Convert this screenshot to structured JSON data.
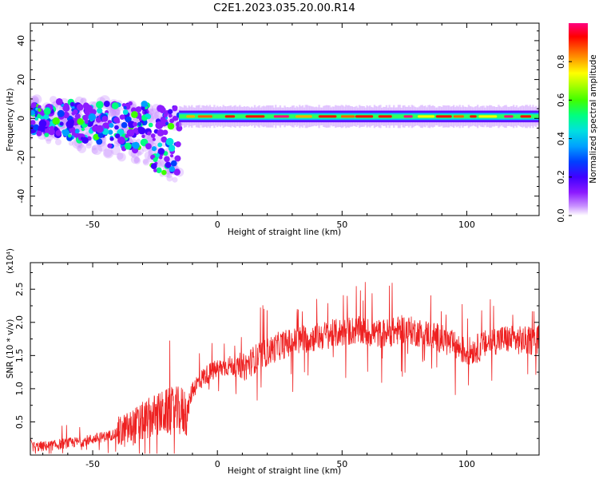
{
  "chart_data": [
    {
      "type": "heatmap",
      "title": "C2E1.2023.035.20.00.R14",
      "xlabel": "Height of straight line (km)",
      "ylabel": "Frequency (Hz)",
      "xlim": [
        -75,
        129
      ],
      "ylim": [
        -50,
        49
      ],
      "x_ticks": [
        -50,
        0,
        50,
        100
      ],
      "y_ticks": [
        -40,
        -20,
        0,
        20,
        40
      ],
      "grid": false,
      "colorbar": {
        "label": "Normalized spectral amplitude",
        "range": [
          0,
          1
        ],
        "ticks": [
          "0.0",
          "0.2",
          "0.4",
          "0.6",
          "0.8"
        ],
        "colormap": [
          "#ffffff",
          "#c890ff",
          "#8c1aff",
          "#4000ff",
          "#0040ff",
          "#00a0ff",
          "#00e0e0",
          "#00ff80",
          "#40ff00",
          "#b0ff00",
          "#ffff00",
          "#ffb000",
          "#ff6000",
          "#ff0000",
          "#ff0080"
        ]
      },
      "features": {
        "scattered_region_x": [
          -75,
          -15
        ],
        "scattered_region_freq": [
          -33,
          15
        ],
        "band_region_x": [
          -15,
          129
        ],
        "band_center_freq": 1.0,
        "band_halfwidth_freq": 3.0
      }
    },
    {
      "type": "line",
      "xlabel": "Height of straight line (km)",
      "ylabel": "SNR (10 * v/v)",
      "multiplier": "(x10⁴)",
      "xlim": [
        -75,
        129
      ],
      "ylim": [
        0,
        2.9
      ],
      "x_ticks": [
        -50,
        0,
        50,
        100
      ],
      "y_ticks": [
        "0.5",
        "1.0",
        "1.5",
        "2.0",
        "2.5"
      ],
      "grid": false,
      "series": [
        {
          "color": "#ee2020",
          "x": [
            -75,
            -70,
            -65,
            -60,
            -55,
            -50,
            -45,
            -40,
            -35,
            -30,
            -25,
            -20,
            -15,
            -12,
            -10,
            -5,
            0,
            5,
            10,
            15,
            20,
            25,
            30,
            35,
            40,
            45,
            50,
            55,
            60,
            65,
            70,
            75,
            80,
            85,
            90,
            95,
            100,
            105,
            110,
            115,
            120,
            125,
            129
          ],
          "y": [
            0.12,
            0.13,
            0.15,
            0.18,
            0.2,
            0.24,
            0.28,
            0.33,
            0.4,
            0.5,
            0.6,
            0.65,
            0.66,
            0.66,
            1.0,
            1.2,
            1.3,
            1.35,
            1.3,
            1.45,
            1.55,
            1.65,
            1.7,
            1.75,
            1.78,
            1.82,
            1.85,
            1.88,
            1.85,
            1.83,
            1.85,
            1.9,
            1.85,
            1.82,
            1.75,
            1.65,
            1.55,
            1.62,
            1.72,
            1.75,
            1.73,
            1.72,
            1.75
          ]
        }
      ]
    }
  ]
}
